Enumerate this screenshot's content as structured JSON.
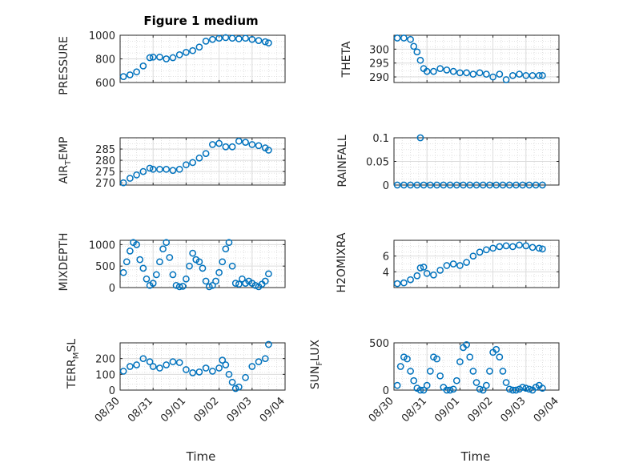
{
  "figure": {
    "title": "Figure 1 medium",
    "xlabel": "Time",
    "x_tick_labels": [
      "08/30",
      "08/31",
      "09/01",
      "09/02",
      "09/03",
      "09/04"
    ],
    "x_range": [
      "08/30",
      "09/04"
    ],
    "marker": "open-circle",
    "marker_color": "#0072BD"
  },
  "chart_data": [
    {
      "type": "scatter",
      "ylabel": "PRESSURE",
      "title": "Figure 1 medium",
      "ylim": [
        600,
        1000
      ],
      "yticks": [
        600,
        800,
        1000
      ],
      "x": [
        0.1,
        0.3,
        0.5,
        0.7,
        0.9,
        1.0,
        1.2,
        1.4,
        1.6,
        1.8,
        2.0,
        2.2,
        2.4,
        2.6,
        2.8,
        3.0,
        3.2,
        3.4,
        3.6,
        3.8,
        4.0,
        4.2,
        4.4,
        4.5
      ],
      "y": [
        650,
        665,
        690,
        740,
        810,
        815,
        815,
        800,
        810,
        835,
        855,
        870,
        900,
        950,
        965,
        975,
        980,
        975,
        970,
        975,
        965,
        955,
        945,
        935
      ],
      "grid": true,
      "minor_grid": true
    },
    {
      "type": "scatter",
      "ylabel": "THETA",
      "ylim": [
        288,
        305
      ],
      "yticks": [
        290,
        295,
        300
      ],
      "x": [
        0.1,
        0.3,
        0.5,
        0.6,
        0.7,
        0.8,
        0.9,
        1.0,
        1.2,
        1.4,
        1.6,
        1.8,
        2.0,
        2.2,
        2.4,
        2.6,
        2.8,
        3.0,
        3.2,
        3.4,
        3.6,
        3.8,
        4.0,
        4.2,
        4.4,
        4.5
      ],
      "y": [
        304,
        304,
        303.5,
        301,
        299,
        296,
        293,
        292,
        292,
        293,
        292.5,
        292,
        291.5,
        291.5,
        291,
        291.5,
        291,
        290,
        291,
        289,
        290.5,
        291,
        290.5,
        290.5,
        290.5,
        290.5
      ],
      "grid": true,
      "minor_grid": true
    },
    {
      "type": "scatter",
      "ylabel": "AIR_TEMP",
      "ylim": [
        269,
        290
      ],
      "yticks": [
        270,
        275,
        280,
        285
      ],
      "x": [
        0.1,
        0.3,
        0.5,
        0.7,
        0.9,
        1.0,
        1.2,
        1.4,
        1.6,
        1.8,
        2.0,
        2.2,
        2.4,
        2.6,
        2.8,
        3.0,
        3.2,
        3.4,
        3.6,
        3.8,
        4.0,
        4.2,
        4.4,
        4.5
      ],
      "y": [
        270,
        272,
        273.5,
        275,
        276.5,
        276,
        276,
        276,
        275.5,
        276,
        278,
        279,
        281,
        283,
        287,
        287.5,
        286,
        286,
        288.5,
        288,
        287,
        286.5,
        285.5,
        284.5
      ],
      "grid": true,
      "minor_grid": true
    },
    {
      "type": "scatter",
      "ylabel": "RAINFALL",
      "ylim": [
        0,
        0.1
      ],
      "yticks": [
        0,
        0.05,
        0.1
      ],
      "x": [
        0.1,
        0.3,
        0.5,
        0.7,
        0.8,
        0.9,
        1.1,
        1.3,
        1.5,
        1.7,
        1.9,
        2.1,
        2.3,
        2.5,
        2.7,
        2.9,
        3.1,
        3.3,
        3.5,
        3.7,
        3.9,
        4.1,
        4.3,
        4.5
      ],
      "y": [
        0,
        0,
        0,
        0,
        0.1,
        0,
        0,
        0,
        0,
        0,
        0,
        0,
        0,
        0,
        0,
        0,
        0,
        0,
        0,
        0,
        0,
        0,
        0,
        0
      ],
      "grid": true,
      "minor_grid": true
    },
    {
      "type": "scatter",
      "ylabel": "MIXDEPTH",
      "ylim": [
        0,
        1100
      ],
      "yticks": [
        0,
        500,
        1000
      ],
      "x": [
        0.1,
        0.2,
        0.3,
        0.4,
        0.5,
        0.6,
        0.7,
        0.8,
        0.9,
        1.0,
        1.1,
        1.2,
        1.3,
        1.4,
        1.5,
        1.6,
        1.7,
        1.8,
        1.9,
        2.0,
        2.1,
        2.2,
        2.3,
        2.4,
        2.5,
        2.6,
        2.7,
        2.8,
        2.9,
        3.0,
        3.1,
        3.2,
        3.3,
        3.4,
        3.5,
        3.6,
        3.7,
        3.8,
        3.9,
        4.0,
        4.1,
        4.2,
        4.3,
        4.4,
        4.5
      ],
      "y": [
        350,
        600,
        850,
        1050,
        1000,
        650,
        450,
        200,
        50,
        100,
        300,
        600,
        900,
        1050,
        700,
        300,
        50,
        20,
        30,
        200,
        500,
        800,
        650,
        600,
        450,
        150,
        20,
        50,
        150,
        350,
        600,
        900,
        1050,
        500,
        100,
        80,
        200,
        100,
        150,
        100,
        50,
        20,
        80,
        150,
        320
      ],
      "grid": true,
      "minor_grid": true
    },
    {
      "type": "scatter",
      "ylabel": "H2OMIXRA",
      "ylim": [
        2,
        8
      ],
      "yticks": [
        4,
        6
      ],
      "x": [
        0.1,
        0.3,
        0.5,
        0.7,
        0.8,
        0.9,
        1.0,
        1.2,
        1.4,
        1.6,
        1.8,
        2.0,
        2.2,
        2.4,
        2.6,
        2.8,
        3.0,
        3.2,
        3.4,
        3.6,
        3.8,
        4.0,
        4.2,
        4.4,
        4.5
      ],
      "y": [
        2.5,
        2.6,
        3,
        3.5,
        4.5,
        4.6,
        3.8,
        3.6,
        4.2,
        4.8,
        5,
        4.8,
        5.2,
        6,
        6.5,
        6.8,
        7,
        7.2,
        7.3,
        7.2,
        7.4,
        7.3,
        7.1,
        7,
        6.9
      ],
      "grid": true,
      "minor_grid": true
    },
    {
      "type": "scatter",
      "ylabel": "TERR_MSL",
      "ylim": [
        0,
        300
      ],
      "yticks": [
        0,
        100,
        200
      ],
      "x": [
        0.1,
        0.3,
        0.5,
        0.7,
        0.9,
        1.0,
        1.2,
        1.4,
        1.6,
        1.8,
        2.0,
        2.2,
        2.4,
        2.6,
        2.8,
        3.0,
        3.1,
        3.2,
        3.3,
        3.4,
        3.5,
        3.6,
        3.8,
        4.0,
        4.2,
        4.4,
        4.5
      ],
      "y": [
        120,
        150,
        160,
        200,
        180,
        150,
        140,
        160,
        180,
        175,
        130,
        110,
        115,
        140,
        120,
        140,
        190,
        160,
        100,
        50,
        10,
        20,
        80,
        150,
        180,
        200,
        290
      ],
      "grid": true,
      "minor_grid": true
    },
    {
      "type": "scatter",
      "ylabel": "SUN_FLUX",
      "ylim": [
        0,
        500
      ],
      "yticks": [
        0,
        500
      ],
      "x": [
        0.1,
        0.2,
        0.3,
        0.4,
        0.5,
        0.6,
        0.7,
        0.8,
        0.9,
        1.0,
        1.1,
        1.2,
        1.3,
        1.4,
        1.5,
        1.6,
        1.7,
        1.8,
        1.9,
        2.0,
        2.1,
        2.2,
        2.3,
        2.4,
        2.5,
        2.6,
        2.7,
        2.8,
        2.9,
        3.0,
        3.1,
        3.2,
        3.3,
        3.4,
        3.5,
        3.6,
        3.7,
        3.8,
        3.9,
        4.0,
        4.1,
        4.2,
        4.3,
        4.4,
        4.5
      ],
      "y": [
        50,
        250,
        350,
        330,
        200,
        100,
        20,
        0,
        0,
        50,
        200,
        350,
        330,
        150,
        30,
        0,
        0,
        10,
        100,
        300,
        450,
        480,
        350,
        200,
        80,
        10,
        0,
        50,
        200,
        400,
        430,
        350,
        200,
        80,
        10,
        0,
        0,
        10,
        30,
        20,
        10,
        0,
        30,
        50,
        20
      ],
      "grid": true,
      "minor_grid": true
    }
  ]
}
